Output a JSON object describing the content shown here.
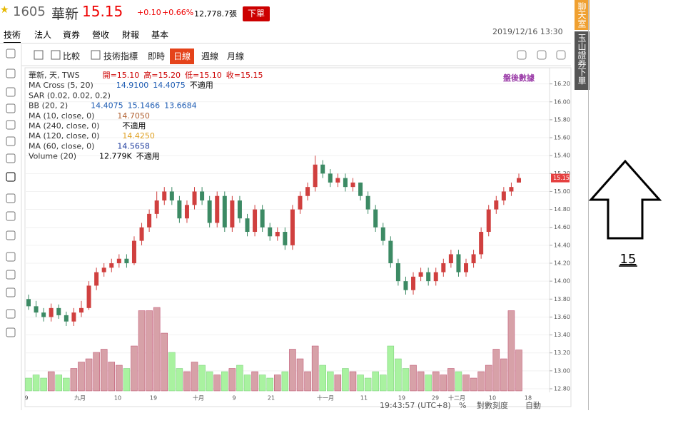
{
  "header": {
    "symbol": "1605",
    "name": "華新",
    "price": "15.15",
    "change": "+0.10",
    "change_pct": "+0.66%",
    "volume": "12,778.7張",
    "order_button": "下單"
  },
  "tabs": [
    "技術",
    "法人",
    "資券",
    "營收",
    "財報",
    "基本"
  ],
  "datetime": "2019/12/16 13:30",
  "side_tabs": [
    "聊天室",
    "玉山證券下單"
  ],
  "toolbar": [
    "比較",
    "技術指標",
    "即時",
    "日線",
    "週線",
    "月線"
  ],
  "legend": [
    {
      "label": "華新, 天, TWS",
      "values": [
        "開=15.10",
        "高=15.20",
        "低=15.10",
        "收=15.15"
      ]
    },
    {
      "label": "MA Cross (5, 20)",
      "values": [
        "14.9100",
        "14.4075",
        "不適用"
      ]
    },
    {
      "label": "SAR (0.02, 0.02, 0.2)",
      "values": []
    },
    {
      "label": "BB (20, 2)",
      "values": [
        "14.4075",
        "15.1466",
        "13.6684"
      ]
    },
    {
      "label": "MA (10, close, 0)",
      "values": [
        "14.7050"
      ]
    },
    {
      "label": "MA (240, close, 0)",
      "values": [
        "不適用"
      ]
    },
    {
      "label": "MA (120, close, 0)",
      "values": [
        "14.4250"
      ]
    },
    {
      "label": "MA (60, close, 0)",
      "values": [
        "14.5658"
      ]
    },
    {
      "label": "Volume (20)",
      "values": [
        "12.779K",
        "不適用"
      ]
    }
  ],
  "after_hours": "盤後數據",
  "chart_data": {
    "type": "candlestick",
    "candles": [
      [
        13.8,
        13.85,
        13.68,
        13.72
      ],
      [
        13.72,
        13.78,
        13.6,
        13.65
      ],
      [
        13.65,
        13.7,
        13.55,
        13.6
      ],
      [
        13.6,
        13.75,
        13.55,
        13.7
      ],
      [
        13.7,
        13.74,
        13.58,
        13.62
      ],
      [
        13.62,
        13.66,
        13.5,
        13.55
      ],
      [
        13.55,
        13.7,
        13.5,
        13.65
      ],
      [
        13.65,
        13.78,
        13.6,
        13.7
      ],
      [
        13.7,
        14.0,
        13.68,
        13.95
      ],
      [
        13.95,
        14.15,
        13.9,
        14.1
      ],
      [
        14.1,
        14.2,
        14.05,
        14.15
      ],
      [
        14.15,
        14.25,
        14.1,
        14.2
      ],
      [
        14.2,
        14.3,
        14.15,
        14.25
      ],
      [
        14.25,
        14.3,
        14.15,
        14.2
      ],
      [
        14.2,
        14.5,
        14.18,
        14.45
      ],
      [
        14.45,
        14.65,
        14.4,
        14.6
      ],
      [
        14.6,
        14.8,
        14.55,
        14.75
      ],
      [
        14.75,
        15.0,
        14.7,
        14.9
      ],
      [
        14.9,
        15.05,
        14.85,
        15.0
      ],
      [
        15.0,
        15.05,
        14.85,
        14.9
      ],
      [
        14.9,
        14.95,
        14.65,
        14.7
      ],
      [
        14.7,
        14.9,
        14.65,
        14.85
      ],
      [
        14.85,
        15.05,
        14.8,
        15.0
      ],
      [
        15.0,
        15.05,
        14.85,
        14.9
      ],
      [
        14.9,
        14.95,
        14.6,
        14.65
      ],
      [
        14.65,
        15.0,
        14.6,
        14.95
      ],
      [
        14.95,
        15.0,
        14.55,
        14.6
      ],
      [
        14.6,
        14.95,
        14.55,
        14.9
      ],
      [
        14.9,
        14.95,
        14.65,
        14.7
      ],
      [
        14.7,
        14.75,
        14.5,
        14.55
      ],
      [
        14.55,
        14.85,
        14.5,
        14.8
      ],
      [
        14.8,
        14.85,
        14.55,
        14.6
      ],
      [
        14.6,
        14.65,
        14.45,
        14.5
      ],
      [
        14.5,
        14.6,
        14.45,
        14.55
      ],
      [
        14.55,
        14.6,
        14.35,
        14.4
      ],
      [
        14.4,
        14.85,
        14.35,
        14.8
      ],
      [
        14.8,
        15.0,
        14.75,
        14.95
      ],
      [
        14.95,
        15.1,
        14.9,
        15.05
      ],
      [
        15.05,
        15.4,
        15.0,
        15.3
      ],
      [
        15.3,
        15.35,
        15.15,
        15.2
      ],
      [
        15.2,
        15.25,
        15.05,
        15.1
      ],
      [
        15.1,
        15.2,
        15.05,
        15.15
      ],
      [
        15.15,
        15.2,
        15.0,
        15.05
      ],
      [
        15.05,
        15.15,
        15.0,
        15.1
      ],
      [
        15.1,
        15.1,
        14.9,
        14.95
      ],
      [
        14.95,
        15.0,
        14.75,
        14.8
      ],
      [
        14.8,
        14.85,
        14.55,
        14.6
      ],
      [
        14.6,
        14.65,
        14.4,
        14.45
      ],
      [
        14.45,
        14.5,
        14.15,
        14.2
      ],
      [
        14.2,
        14.25,
        13.95,
        14.0
      ],
      [
        14.0,
        14.05,
        13.85,
        13.9
      ],
      [
        13.9,
        14.1,
        13.85,
        14.05
      ],
      [
        14.05,
        14.15,
        14.0,
        14.1
      ],
      [
        14.1,
        14.15,
        13.95,
        14.0
      ],
      [
        14.0,
        14.15,
        13.95,
        14.1
      ],
      [
        14.1,
        14.25,
        14.05,
        14.2
      ],
      [
        14.2,
        14.35,
        14.15,
        14.3
      ],
      [
        14.3,
        14.35,
        14.05,
        14.1
      ],
      [
        14.1,
        14.25,
        14.05,
        14.2
      ],
      [
        14.2,
        14.35,
        14.15,
        14.3
      ],
      [
        14.3,
        14.6,
        14.25,
        14.55
      ],
      [
        14.55,
        14.85,
        14.5,
        14.8
      ],
      [
        14.8,
        14.95,
        14.75,
        14.9
      ],
      [
        14.9,
        15.05,
        14.85,
        15.0
      ],
      [
        15.0,
        15.1,
        14.95,
        15.05
      ],
      [
        15.1,
        15.2,
        15.1,
        15.15
      ]
    ],
    "volumes": [
      4,
      5,
      4,
      6,
      5,
      4,
      7,
      9,
      10,
      12,
      13,
      9,
      8,
      7,
      14,
      25,
      25,
      26,
      18,
      12,
      7,
      6,
      9,
      8,
      6,
      5,
      6,
      7,
      8,
      5,
      6,
      5,
      4,
      5,
      6,
      13,
      10,
      6,
      14,
      8,
      6,
      5,
      7,
      6,
      5,
      4,
      6,
      5,
      14,
      10,
      7,
      8,
      6,
      5,
      6,
      5,
      7,
      6,
      5,
      4,
      6,
      8,
      13,
      10,
      25,
      12.779
    ],
    "ylim": [
      12.76,
      16.38
    ],
    "yticks": [
      {
        "value": 12.8,
        "label": "12.80"
      },
      {
        "value": 13.0,
        "label": "13.00"
      },
      {
        "value": 13.2,
        "label": "13.20"
      },
      {
        "value": 13.4,
        "label": "13.40"
      },
      {
        "value": 13.6,
        "label": "13.60"
      },
      {
        "value": 13.8,
        "label": "13.80"
      },
      {
        "value": 14.0,
        "label": "14.00"
      },
      {
        "value": 14.2,
        "label": "14.20"
      },
      {
        "value": 14.4,
        "label": "14.40"
      },
      {
        "value": 14.6,
        "label": "14.60"
      },
      {
        "value": 14.8,
        "label": "14.80"
      },
      {
        "value": 15.0,
        "label": "15.00"
      },
      {
        "value": 15.2,
        "label": "15.20"
      },
      {
        "value": 15.4,
        "label": "15.40"
      },
      {
        "value": 15.6,
        "label": "15.60"
      },
      {
        "value": 15.8,
        "label": "15.80"
      },
      {
        "value": 16.0,
        "label": "16.00"
      },
      {
        "value": 16.2,
        "label": "16.20"
      }
    ],
    "xlabels": [
      "9",
      "九月",
      "10",
      "19",
      "十月",
      "9",
      "21",
      "十一月",
      "11",
      "19",
      "29",
      "十二月",
      "10",
      "18"
    ],
    "grid": true
  },
  "status": {
    "time": "19:43:57",
    "tz": "(UTC+8)",
    "percent": "%",
    "log": "對數刻度",
    "auto": "自動"
  },
  "annotation": "15"
}
